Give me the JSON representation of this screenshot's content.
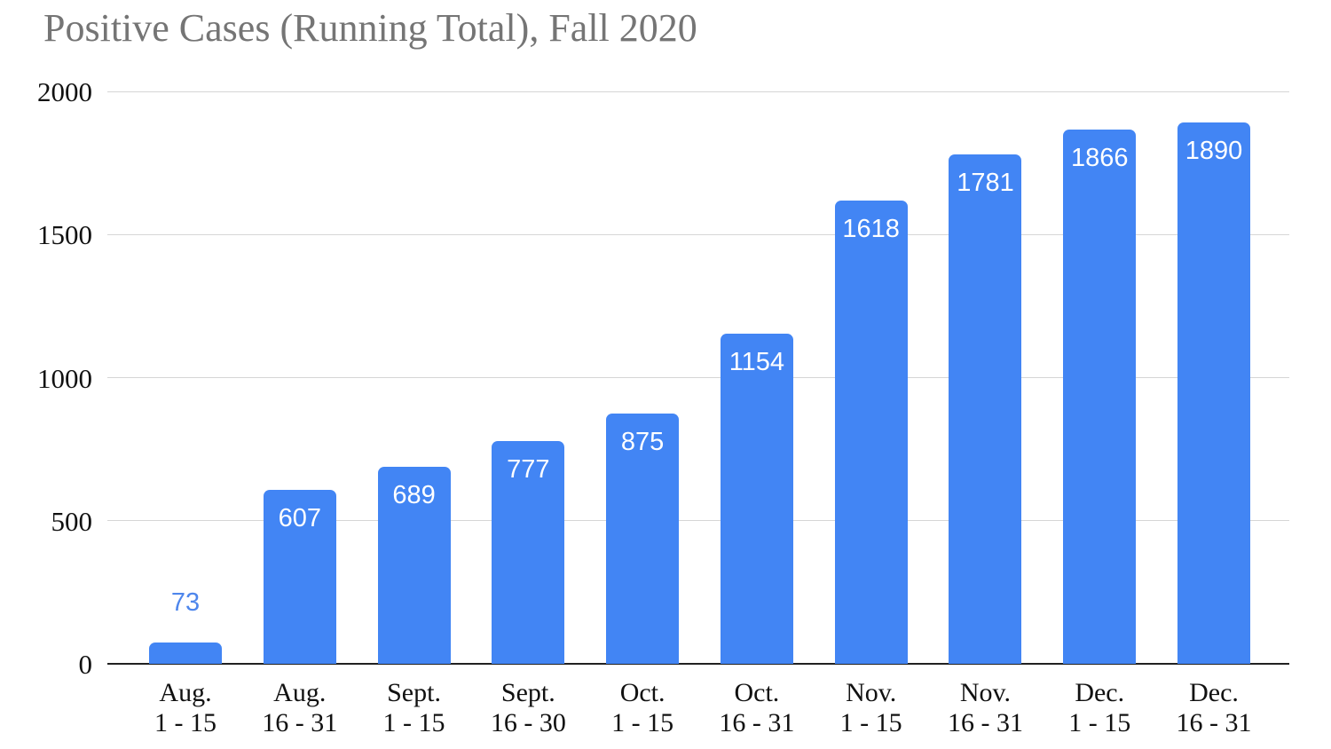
{
  "title": "Positive Cases (Running Total), Fall 2020",
  "colors": {
    "bar": "#4285f4",
    "inside_label": "#ffffff",
    "outside_label": "#4e86ec",
    "gridline": "#d6d6d6",
    "axis_line": "#212121",
    "title": "#757575",
    "tick_label": "#111111"
  },
  "chart_data": {
    "type": "bar",
    "title": "Positive Cases (Running Total), Fall 2020",
    "categories": [
      {
        "line1": "Aug.",
        "line2": "1 - 15"
      },
      {
        "line1": "Aug.",
        "line2": "16 - 31"
      },
      {
        "line1": "Sept.",
        "line2": "1 - 15"
      },
      {
        "line1": "Sept.",
        "line2": "16 - 30"
      },
      {
        "line1": "Oct.",
        "line2": "1 - 15"
      },
      {
        "line1": "Oct.",
        "line2": "16 - 31"
      },
      {
        "line1": "Nov.",
        "line2": "1 - 15"
      },
      {
        "line1": "Nov.",
        "line2": "16 - 31"
      },
      {
        "line1": "Dec.",
        "line2": "1 - 15"
      },
      {
        "line1": "Dec.",
        "line2": "16 - 31"
      }
    ],
    "values": [
      73,
      607,
      689,
      777,
      875,
      1154,
      1618,
      1781,
      1866,
      1890
    ],
    "data_labels": [
      "73",
      "607",
      "689",
      "777",
      "875",
      "1154",
      "1618",
      "1781",
      "1866",
      "1890"
    ],
    "y_ticks": [
      0,
      500,
      1000,
      1500,
      2000
    ],
    "y_tick_labels": [
      "0",
      "500",
      "1000",
      "1500",
      "2000"
    ],
    "xlabel": "",
    "ylabel": "",
    "ylim": [
      0,
      2000
    ],
    "grid": true,
    "legend": "none",
    "label_placement": "inside-top; outside-above when bar too short"
  }
}
